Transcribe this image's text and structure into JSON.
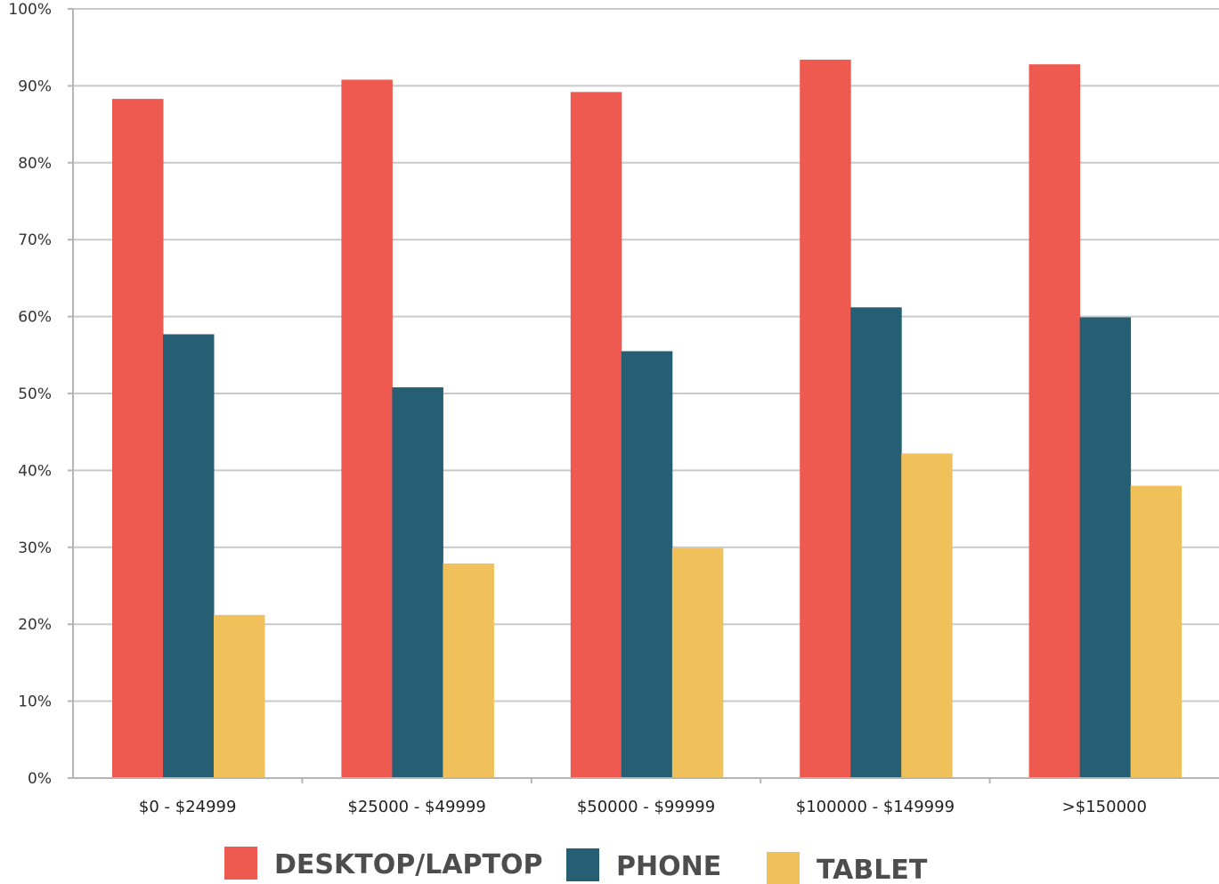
{
  "chart_data": {
    "type": "bar",
    "categories": [
      "$0 - $24999",
      "$25000 - $49999",
      "$50000 - $99999",
      "$100000 - $149999",
      ">$150000"
    ],
    "series": [
      {
        "name": "DESKTOP/LAPTOP",
        "color": "#ee5a50",
        "values": [
          88.3,
          90.8,
          89.2,
          93.4,
          92.8
        ]
      },
      {
        "name": "PHONE",
        "color": "#265f73",
        "values": [
          57.7,
          50.8,
          55.5,
          61.2,
          59.9
        ]
      },
      {
        "name": "TABLET",
        "color": "#f0c05a",
        "values": [
          21.2,
          27.9,
          29.9,
          42.2,
          38.0
        ]
      }
    ],
    "ylim": [
      0,
      100
    ],
    "yticks": [
      "0%",
      "10%",
      "20%",
      "30%",
      "40%",
      "50%",
      "60%",
      "70%",
      "80%",
      "90%",
      "100%"
    ],
    "grid": true,
    "legend_position": "bottom",
    "title": "",
    "xlabel": "",
    "ylabel": ""
  }
}
